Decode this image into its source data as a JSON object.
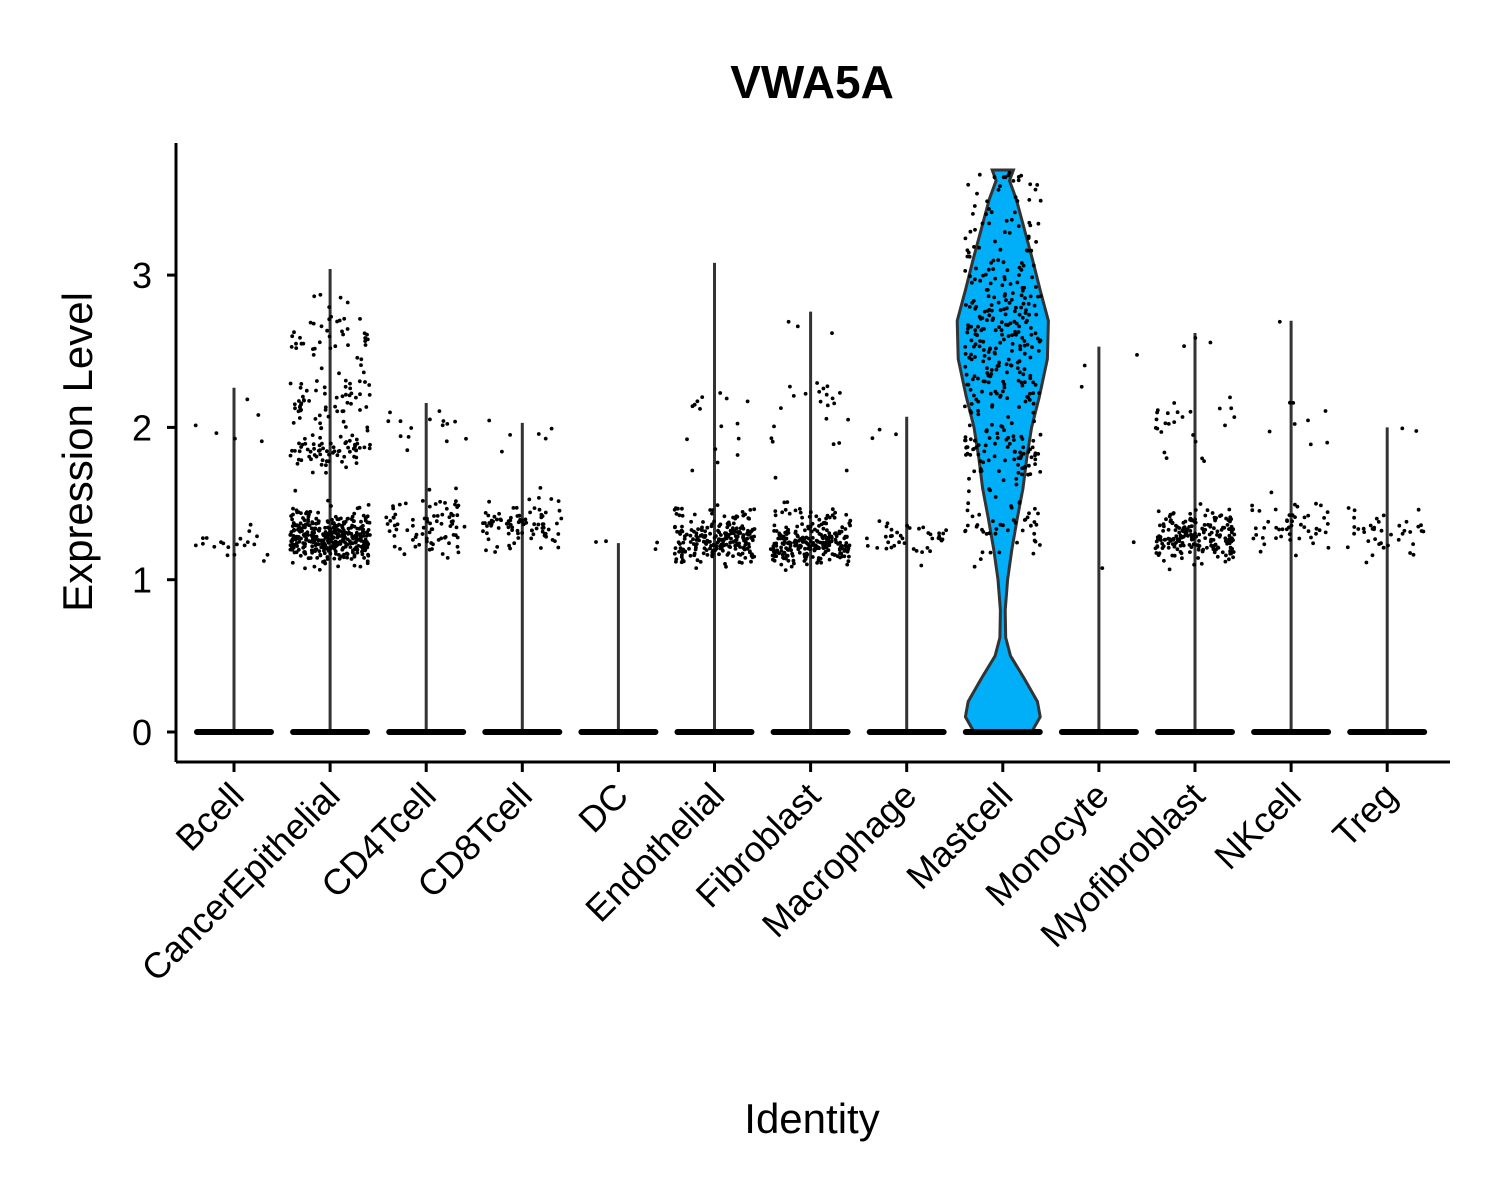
{
  "chart_data": {
    "type": "violin",
    "title": "VWA5A",
    "xlabel": "Identity",
    "ylabel": "Expression Level",
    "ylim": [
      -0.18,
      3.85
    ],
    "yticks": [
      0,
      1,
      2,
      3
    ],
    "categories": [
      "Bcell",
      "CancerEpithelial",
      "CD4Tcell",
      "CD8Tcell",
      "DC",
      "Endothelial",
      "Fibroblast",
      "Macrophage",
      "Mastcell",
      "Monocyte",
      "Myofibroblast",
      "NKcell",
      "Treg"
    ],
    "max_values": [
      2.26,
      3.04,
      2.16,
      2.03,
      1.24,
      3.08,
      2.76,
      2.07,
      3.69,
      2.53,
      2.62,
      2.7,
      2.0
    ],
    "fill_color": "#00AFF8",
    "highlighted_category": "Mastcell",
    "point_clusters": [
      {
        "category": "Bcell",
        "clusters": [
          [
            1.25,
            0.08,
            20
          ],
          [
            2.05,
            0.12,
            6
          ]
        ]
      },
      {
        "category": "CancerEpithelial",
        "clusters": [
          [
            1.28,
            0.08,
            400
          ],
          [
            1.85,
            0.08,
            70
          ],
          [
            2.15,
            0.1,
            60
          ],
          [
            2.6,
            0.08,
            40
          ],
          [
            2.85,
            0.1,
            4
          ]
        ]
      },
      {
        "category": "CD4Tcell",
        "clusters": [
          [
            1.35,
            0.1,
            80
          ],
          [
            2.02,
            0.07,
            15
          ]
        ]
      },
      {
        "category": "CD8Tcell",
        "clusters": [
          [
            1.35,
            0.08,
            90
          ],
          [
            1.95,
            0.1,
            6
          ]
        ]
      },
      {
        "category": "DC",
        "clusters": [
          [
            1.22,
            0.03,
            4
          ]
        ]
      },
      {
        "category": "Endothelial",
        "clusters": [
          [
            1.25,
            0.07,
            200
          ],
          [
            1.4,
            0.05,
            30
          ],
          [
            1.85,
            0.1,
            8
          ],
          [
            2.15,
            0.05,
            8
          ]
        ]
      },
      {
        "category": "Fibroblast",
        "clusters": [
          [
            1.22,
            0.06,
            220
          ],
          [
            1.4,
            0.05,
            40
          ],
          [
            1.9,
            0.1,
            8
          ],
          [
            2.2,
            0.06,
            15
          ],
          [
            2.65,
            0.06,
            3
          ]
        ]
      },
      {
        "category": "Macrophage",
        "clusters": [
          [
            1.25,
            0.06,
            40
          ],
          [
            1.85,
            0.1,
            3
          ]
        ]
      },
      {
        "category": "Mastcell",
        "clusters": [
          [
            2.55,
            0.5,
            320
          ],
          [
            1.85,
            0.1,
            50
          ],
          [
            1.35,
            0.08,
            30
          ],
          [
            3.5,
            0.12,
            20
          ]
        ]
      },
      {
        "category": "Monocyte",
        "clusters": [
          [
            1.45,
            0.2,
            2
          ],
          [
            2.3,
            0.2,
            3
          ]
        ]
      },
      {
        "category": "Myofibroblast",
        "clusters": [
          [
            1.28,
            0.08,
            200
          ],
          [
            2.05,
            0.1,
            20
          ],
          [
            1.8,
            0.05,
            5
          ],
          [
            2.55,
            0.06,
            3
          ]
        ]
      },
      {
        "category": "NKcell",
        "clusters": [
          [
            1.35,
            0.08,
            50
          ],
          [
            2.02,
            0.07,
            8
          ],
          [
            2.7,
            0.02,
            1
          ]
        ]
      },
      {
        "category": "Treg",
        "clusters": [
          [
            1.32,
            0.08,
            40
          ],
          [
            1.95,
            0.05,
            2
          ]
        ]
      }
    ],
    "mastcell_violin_profile": [
      [
        0.0,
        0.6
      ],
      [
        0.1,
        0.78
      ],
      [
        0.2,
        0.72
      ],
      [
        0.35,
        0.45
      ],
      [
        0.5,
        0.16
      ],
      [
        0.62,
        0.06
      ],
      [
        0.8,
        0.05
      ],
      [
        1.0,
        0.1
      ],
      [
        1.2,
        0.19
      ],
      [
        1.4,
        0.3
      ],
      [
        1.6,
        0.42
      ],
      [
        1.8,
        0.5
      ],
      [
        2.0,
        0.6
      ],
      [
        2.2,
        0.76
      ],
      [
        2.45,
        0.93
      ],
      [
        2.7,
        0.95
      ],
      [
        2.9,
        0.78
      ],
      [
        3.1,
        0.62
      ],
      [
        3.3,
        0.45
      ],
      [
        3.5,
        0.28
      ],
      [
        3.62,
        0.14
      ],
      [
        3.69,
        0.22
      ]
    ]
  }
}
